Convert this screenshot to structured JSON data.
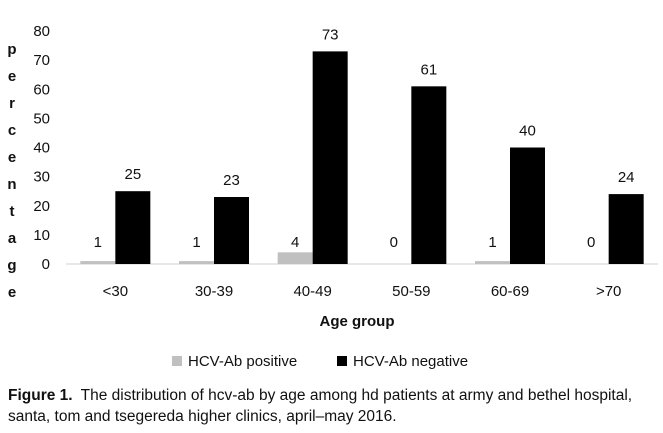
{
  "chart_data": {
    "type": "bar",
    "categories": [
      "<30",
      "30-39",
      "40-49",
      "50-59",
      "60-69",
      ">70"
    ],
    "series": [
      {
        "name": "HCV-Ab positive",
        "color": "#c0c0c0",
        "values": [
          1,
          1,
          4,
          0,
          1,
          0
        ]
      },
      {
        "name": "HCV-Ab negative",
        "color": "#000000",
        "values": [
          25,
          23,
          73,
          61,
          40,
          24
        ]
      }
    ],
    "title": "",
    "xlabel": "Age group",
    "ylabel": "percentage",
    "ylim": [
      0,
      80
    ],
    "yticks": [
      0,
      10,
      20,
      30,
      40,
      50,
      60,
      70,
      80
    ],
    "grid": false,
    "legend_position": "bottom"
  },
  "caption": {
    "label": "Figure 1.",
    "text": "The distribution of hcv-ab by age among hd patients at army and bethel hospital, santa, tom and tsegereda higher clinics, april–may 2016."
  }
}
